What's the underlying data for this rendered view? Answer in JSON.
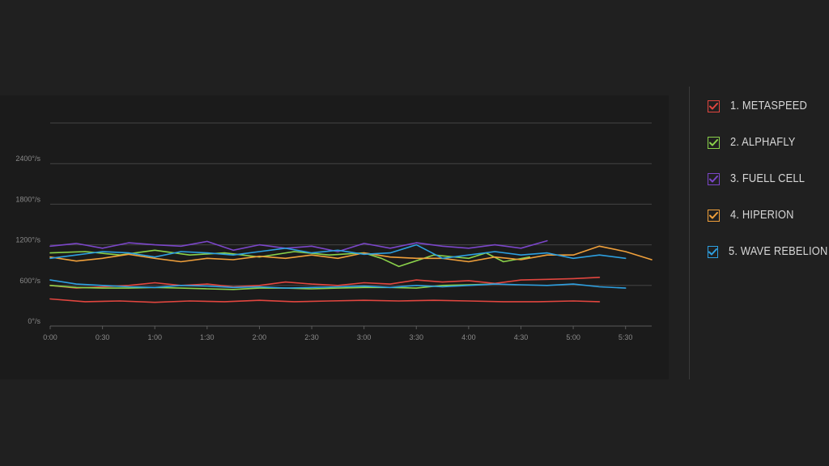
{
  "chart_data": {
    "type": "line",
    "title": "",
    "xlabel": "",
    "ylabel": "",
    "x_ticks": [
      "0:00",
      "0:30",
      "1:00",
      "1:30",
      "2:00",
      "2:30",
      "3:00",
      "3:30",
      "4:00",
      "4:30",
      "5:00",
      "5:30"
    ],
    "y_ticks": [
      "0°/s",
      "600°/s",
      "1200°/s",
      "1800°/s",
      "2400°/s"
    ],
    "x_unit": "seconds",
    "xlim": [
      0,
      345
    ],
    "ylim": [
      0,
      3000
    ],
    "grid": true,
    "legend_position": "right",
    "series": [
      {
        "name": "1. METASPEED",
        "color": "#e2463f",
        "x": [
          0,
          20,
          40,
          60,
          80,
          100,
          120,
          140,
          160,
          180,
          200,
          220,
          240,
          260,
          280,
          300,
          315
        ],
        "y": [
          400,
          360,
          370,
          350,
          370,
          360,
          380,
          360,
          370,
          380,
          370,
          380,
          370,
          360,
          360,
          370,
          360
        ]
      },
      {
        "name": "1. METASPEED",
        "color": "#e2463f",
        "x": [
          0,
          15,
          30,
          45,
          60,
          75,
          90,
          105,
          120,
          135,
          150,
          165,
          180,
          195,
          210,
          225,
          240,
          255,
          270,
          285,
          300,
          315
        ],
        "y": [
          600,
          560,
          580,
          600,
          640,
          600,
          620,
          580,
          600,
          650,
          620,
          600,
          640,
          620,
          680,
          650,
          670,
          630,
          680,
          690,
          700,
          720
        ]
      },
      {
        "name": "2. ALPHAFLY",
        "color": "#8ad14a",
        "x": [
          0,
          15,
          30,
          45,
          60,
          75,
          90,
          105,
          120,
          135,
          150,
          165,
          180,
          195,
          210,
          225,
          240,
          255
        ],
        "y": [
          600,
          570,
          560,
          560,
          570,
          560,
          550,
          540,
          560,
          560,
          550,
          560,
          570,
          570,
          560,
          600,
          610,
          620
        ]
      },
      {
        "name": "2. ALPHAFLY",
        "color": "#8ad14a",
        "x": [
          0,
          20,
          40,
          60,
          80,
          100,
          120,
          140,
          160,
          180,
          190,
          200,
          220,
          240,
          250,
          260,
          275
        ],
        "y": [
          1080,
          1100,
          1050,
          1120,
          1050,
          1080,
          1020,
          1100,
          1050,
          1080,
          1000,
          880,
          1050,
          1000,
          1080,
          950,
          1020
        ]
      },
      {
        "name": "3. FUELL CELL",
        "color": "#7b46c9",
        "x": [
          0,
          15,
          30,
          45,
          60,
          75,
          90,
          105,
          120,
          135,
          150,
          165,
          180,
          195,
          210,
          225,
          240,
          255,
          270,
          285
        ],
        "y": [
          1180,
          1220,
          1150,
          1230,
          1200,
          1180,
          1250,
          1120,
          1200,
          1150,
          1180,
          1100,
          1220,
          1150,
          1230,
          1180,
          1150,
          1200,
          1150,
          1260
        ]
      },
      {
        "name": "4. HIPERION",
        "color": "#f0a03b",
        "x": [
          0,
          15,
          30,
          45,
          60,
          75,
          90,
          105,
          120,
          135,
          150,
          165,
          180,
          195,
          210,
          225,
          240,
          255,
          270,
          285,
          300,
          315,
          330,
          345
        ],
        "y": [
          1020,
          960,
          1000,
          1060,
          1000,
          950,
          1000,
          980,
          1030,
          1000,
          1050,
          1000,
          1080,
          1020,
          1000,
          1000,
          950,
          1020,
          980,
          1050,
          1050,
          1180,
          1100,
          980
        ]
      },
      {
        "name": "5. WAVE REBELION",
        "color": "#2d9fe0",
        "x": [
          0,
          15,
          30,
          45,
          60,
          75,
          90,
          105,
          120,
          135,
          150,
          165,
          180,
          195,
          210,
          225,
          240,
          255,
          270,
          285,
          300,
          315,
          330
        ],
        "y": [
          680,
          620,
          600,
          580,
          570,
          600,
          590,
          570,
          580,
          560,
          570,
          580,
          590,
          570,
          600,
          580,
          600,
          620,
          610,
          600,
          620,
          580,
          560
        ]
      },
      {
        "name": "5. WAVE REBELION",
        "color": "#2d9fe0",
        "x": [
          0,
          15,
          30,
          45,
          60,
          75,
          90,
          105,
          120,
          135,
          150,
          165,
          180,
          195,
          210,
          225,
          240,
          255,
          270,
          285,
          300,
          315,
          330
        ],
        "y": [
          1000,
          1050,
          1100,
          1080,
          1020,
          1100,
          1080,
          1050,
          1100,
          1150,
          1080,
          1120,
          1060,
          1080,
          1200,
          1000,
          1050,
          1100,
          1050,
          1080,
          1000,
          1050,
          1000
        ]
      }
    ]
  },
  "legend": {
    "items": [
      {
        "label": "1. METASPEED",
        "color": "#e2463f",
        "icon": "check-icon"
      },
      {
        "label": "2. ALPHAFLY",
        "color": "#8ad14a",
        "icon": "check-icon"
      },
      {
        "label": "3. FUELL CELL",
        "color": "#7b46c9",
        "icon": "check-icon"
      },
      {
        "label": "4. HIPERION",
        "color": "#f0a03b",
        "icon": "check-icon"
      },
      {
        "label": "5. WAVE REBELION",
        "color": "#2d9fe0",
        "icon": "check-icon"
      }
    ]
  }
}
